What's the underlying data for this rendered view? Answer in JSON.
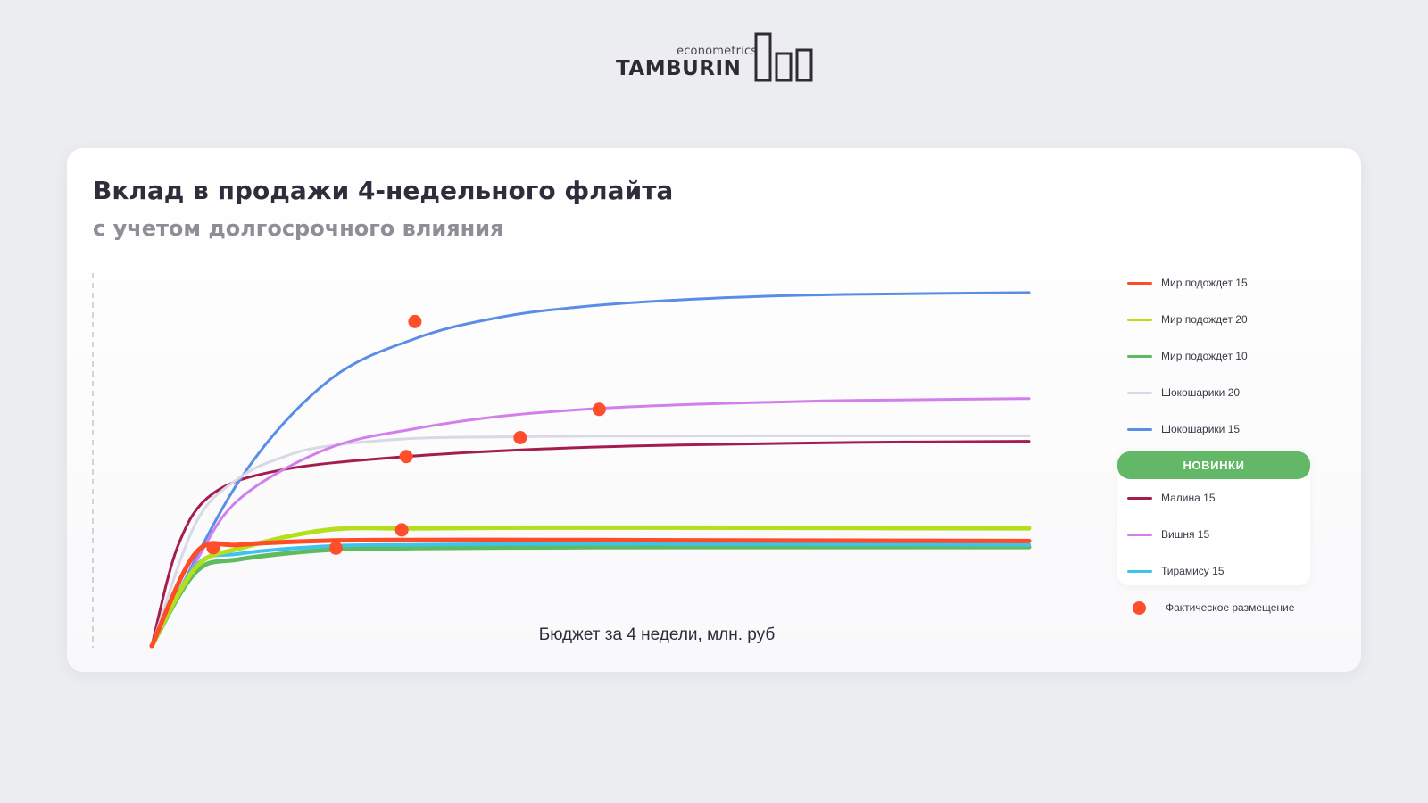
{
  "logo": {
    "brand": "TAMBURIN",
    "tagline": "econometrics"
  },
  "chart_data": {
    "type": "line",
    "title": "Вклад в продажи 4-недельного флайта",
    "subtitle": "с учетом долгосрочного влияния",
    "xlabel": "Бюджет за 4 недели, млн. руб",
    "ylabel": "",
    "axis_ticks_shown": false,
    "grid": false,
    "legend_position": "right",
    "colors": {
      "marker": "#ff4e2b",
      "new_header": "#62b866"
    },
    "series": [
      {
        "name": "Мир подождет 15",
        "color": "#ff4b26",
        "stroke": 5,
        "group": "main",
        "x": [
          0,
          0.05,
          0.1,
          0.2,
          0.3,
          0.45,
          0.6,
          0.8,
          1.0
        ],
        "y": [
          0,
          0.25,
          0.272,
          0.283,
          0.285,
          0.285,
          0.284,
          0.283,
          0.282
        ],
        "actual": [
          0.07,
          0.264
        ]
      },
      {
        "name": "Мир подождет 20",
        "color": "#b3e01b",
        "stroke": 5,
        "group": "main",
        "x": [
          0,
          0.05,
          0.1,
          0.2,
          0.3,
          0.45,
          0.6,
          0.8,
          1.0
        ],
        "y": [
          0,
          0.21,
          0.262,
          0.312,
          0.316,
          0.318,
          0.318,
          0.317,
          0.316
        ],
        "actual": [
          0.285,
          0.312
        ]
      },
      {
        "name": "Мир подождет 10",
        "color": "#5fbb5d",
        "stroke": 5,
        "group": "main",
        "x": [
          0,
          0.05,
          0.1,
          0.2,
          0.3,
          0.45,
          0.6,
          0.8,
          1.0
        ],
        "y": [
          0,
          0.198,
          0.233,
          0.258,
          0.263,
          0.265,
          0.266,
          0.266,
          0.266
        ],
        "actual": [
          0.21,
          0.263
        ]
      },
      {
        "name": "Шокошарики 20",
        "color": "#d8d8e6",
        "stroke": 3,
        "group": "main",
        "x": [
          0,
          0.05,
          0.1,
          0.15,
          0.2,
          0.3,
          0.4,
          0.5,
          0.7,
          1.0
        ],
        "y": [
          0,
          0.33,
          0.452,
          0.508,
          0.537,
          0.558,
          0.562,
          0.564,
          0.565,
          0.565
        ],
        "actual": [
          0.42,
          0.56
        ]
      },
      {
        "name": "Шокошарики 15",
        "color": "#5a8ee6",
        "stroke": 3,
        "group": "main",
        "x": [
          0,
          0.1,
          0.2,
          0.3,
          0.4,
          0.5,
          0.6,
          0.7,
          0.8,
          1.0
        ],
        "y": [
          0,
          0.445,
          0.71,
          0.826,
          0.885,
          0.914,
          0.93,
          0.94,
          0.945,
          0.95
        ],
        "actual": [
          0.3,
          0.872
        ]
      },
      {
        "name": "Малина 15",
        "color": "#a51d4f",
        "stroke": 3,
        "group": "new",
        "x": [
          0,
          0.03,
          0.07,
          0.15,
          0.29,
          0.45,
          0.6,
          0.8,
          1.0
        ],
        "y": [
          0,
          0.27,
          0.41,
          0.474,
          0.509,
          0.53,
          0.54,
          0.547,
          0.55
        ],
        "actual": [
          0.29,
          0.509
        ]
      },
      {
        "name": "Вишня 15",
        "color": "#d27fec",
        "stroke": 3,
        "group": "new",
        "x": [
          0,
          0.05,
          0.1,
          0.2,
          0.3,
          0.4,
          0.5,
          0.6,
          0.7,
          0.8,
          1.0
        ],
        "y": [
          0,
          0.225,
          0.395,
          0.53,
          0.584,
          0.618,
          0.637,
          0.648,
          0.655,
          0.66,
          0.665
        ],
        "actual": [
          0.51,
          0.636
        ]
      },
      {
        "name": "Тирамису 15",
        "color": "#3dc3ec",
        "stroke": 4,
        "group": "new",
        "x": [
          0,
          0.05,
          0.1,
          0.2,
          0.3,
          0.45,
          0.6,
          0.8,
          1.0
        ],
        "y": [
          0,
          0.215,
          0.248,
          0.268,
          0.272,
          0.274,
          0.274,
          0.273,
          0.272
        ],
        "actual": null
      }
    ],
    "legend": {
      "new_header": "НОВИНКИ",
      "marker_label": "Фактическое размещение"
    }
  }
}
